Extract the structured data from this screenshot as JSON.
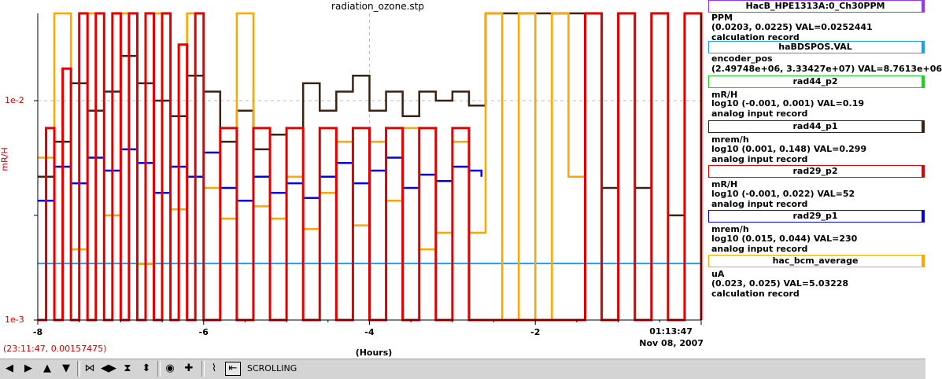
{
  "window": {
    "title": "radiation_ozone.stp"
  },
  "cursor_readout": "(23:11:47, 0.00157475)",
  "x_axis": {
    "label": "(Hours)",
    "end_time": "01:13:47",
    "end_date": "Nov 08, 2007"
  },
  "toolbar": {
    "status_label": "SCROLLING"
  },
  "legend": {
    "items": [
      {
        "name": "HacB_HPE1313A:0_Ch30PPM",
        "color": "#9b30ff",
        "lines": [
          "PPM",
          "(0.0203, 0.0225) VAL=0.0252441",
          "calculation record"
        ]
      },
      {
        "name": "haBDSPOS.VAL",
        "color": "#1ea0e8",
        "lines": [
          "encoder_pos",
          "(2.49748e+06, 3.33427e+07) VAL=8.7613e+06"
        ]
      },
      {
        "name": "rad44_p2",
        "color": "#20d020",
        "lines": [
          "mR/H",
          "log10 (-0.001, 0.001) VAL=0.19",
          "analog input record"
        ]
      },
      {
        "name": "rad44_p1",
        "color": "#3a2214",
        "lines": [
          "mrem/h",
          "log10 (0.001, 0.148) VAL=0.299",
          "analog input record"
        ]
      },
      {
        "name": "rad29_p2",
        "color": "#e00000",
        "lines": [
          "mR/H",
          "log10 (-0.001, 0.022) VAL=52",
          "analog input record"
        ]
      },
      {
        "name": "rad29_p1",
        "color": "#0000e0",
        "lines": [
          "mrem/h",
          "log10 (0.015, 0.044) VAL=230",
          "analog input record"
        ]
      },
      {
        "name": "hac_bcm_average",
        "color": "#ffa500",
        "lines": [
          "uA",
          "(0.023, 0.025) VAL=5.03228",
          "calculation record"
        ]
      }
    ]
  },
  "chart_data": {
    "type": "line",
    "title": "radiation_ozone.stp",
    "xlabel": "(Hours)",
    "ylabel": "mR/H",
    "yscale": "log",
    "xlim": [
      -8,
      0
    ],
    "ylim": [
      0.001,
      0.025
    ],
    "x_ticks": [
      -8,
      -6,
      -4,
      -2
    ],
    "x_tick_labels": [
      "-8",
      "-6",
      "-4",
      "-2"
    ],
    "y_ticks": [
      0.001,
      0.01
    ],
    "y_tick_labels": [
      "1e-3",
      "1e-2"
    ],
    "grid": true,
    "series": [
      {
        "name": "haBDSPOS.VAL",
        "color": "#1ea0e8",
        "x": [
          -8,
          0
        ],
        "y": [
          0.00181,
          0.00181
        ]
      },
      {
        "name": "rad44_p1",
        "color": "#3a2214",
        "x": [
          -8,
          -7.8,
          -7.6,
          -7.4,
          -7.2,
          -7.0,
          -6.8,
          -6.6,
          -6.4,
          -6.2,
          -6.0,
          -5.8,
          -5.6,
          -5.4,
          -5.2,
          -5.0,
          -4.8,
          -4.6,
          -4.4,
          -4.2,
          -4.0,
          -3.8,
          -3.6,
          -3.4,
          -3.2,
          -3.0,
          -2.8,
          -2.6,
          -2.4,
          -2.2,
          -2.0,
          -1.8,
          -1.6,
          -1.4,
          -1.2,
          -1.0,
          -0.8,
          -0.6,
          -0.4,
          -0.2,
          0
        ],
        "y": [
          0.0045,
          0.0065,
          0.012,
          0.009,
          0.011,
          0.016,
          0.012,
          0.01,
          0.0085,
          0.013,
          0.011,
          0.0065,
          0.009,
          0.006,
          0.007,
          0.0075,
          0.012,
          0.009,
          0.011,
          0.013,
          0.009,
          0.011,
          0.0085,
          0.011,
          0.01,
          0.011,
          0.0095,
          0.025,
          0.025,
          0.025,
          0.025,
          0.025,
          0.025,
          0.025,
          0.004,
          0.025,
          0.004,
          0.025,
          0.003,
          0.025,
          0.01
        ]
      },
      {
        "name": "rad29_p1",
        "color": "#0000e0",
        "x": [
          -8,
          -7.8,
          -7.6,
          -7.4,
          -7.2,
          -7.0,
          -6.8,
          -6.6,
          -6.4,
          -6.2,
          -6.0,
          -5.8,
          -5.6,
          -5.4,
          -5.2,
          -5.0,
          -4.8,
          -4.6,
          -4.4,
          -4.2,
          -4.0,
          -3.8,
          -3.6,
          -3.4,
          -3.2,
          -3.0,
          -2.8,
          -2.65
        ],
        "y": [
          0.0035,
          0.005,
          0.0042,
          0.0055,
          0.0048,
          0.006,
          0.0052,
          0.0038,
          0.005,
          0.0045,
          0.0058,
          0.004,
          0.0035,
          0.0045,
          0.0038,
          0.0042,
          0.0036,
          0.0045,
          0.0052,
          0.0042,
          0.0048,
          0.0055,
          0.004,
          0.0046,
          0.0043,
          0.005,
          0.0048,
          0.0045
        ]
      },
      {
        "name": "hac_bcm_average",
        "color": "#ffa500",
        "x": [
          -8,
          -7.8,
          -7.6,
          -7.4,
          -7.2,
          -7.0,
          -6.8,
          -6.6,
          -6.4,
          -6.2,
          -6.0,
          -5.8,
          -5.6,
          -5.4,
          -5.2,
          -5.0,
          -4.8,
          -4.6,
          -4.4,
          -4.2,
          -4.0,
          -3.8,
          -3.6,
          -3.4,
          -3.2,
          -3.0,
          -2.8,
          -2.6,
          -2.4,
          -2.2,
          -2.0,
          -1.8,
          -1.6,
          -1.4,
          -1.2,
          -1.0,
          -0.8,
          -0.6,
          -0.4,
          -0.2,
          0
        ],
        "y": [
          0.0055,
          0.025,
          0.0021,
          0.025,
          0.003,
          0.025,
          0.0018,
          0.025,
          0.0032,
          0.025,
          0.004,
          0.0029,
          0.025,
          0.0033,
          0.0029,
          0.0045,
          0.0026,
          0.0038,
          0.0065,
          0.0027,
          0.0065,
          0.0035,
          0.0075,
          0.0021,
          0.0025,
          0.0065,
          0.0025,
          0.025,
          0.001,
          0.025,
          0.001,
          0.025,
          0.0045,
          0.025,
          0.001,
          0.025,
          0.001,
          0.025,
          0.001,
          0.025,
          0.001
        ]
      },
      {
        "name": "rad29_p2",
        "color": "#e00000",
        "x": [
          -8,
          -7.9,
          -7.8,
          -7.7,
          -7.6,
          -7.5,
          -7.4,
          -7.3,
          -7.2,
          -7.1,
          -7.0,
          -6.9,
          -6.8,
          -6.7,
          -6.6,
          -6.5,
          -6.4,
          -6.3,
          -6.2,
          -6.1,
          -6.0,
          -5.8,
          -5.6,
          -5.4,
          -5.2,
          -5.0,
          -4.8,
          -4.6,
          -4.4,
          -4.2,
          -4.0,
          -3.8,
          -3.6,
          -3.4,
          -3.2,
          -3.0,
          -2.8,
          -2.6,
          -2.4,
          -2.2,
          -2.0,
          -1.8,
          -1.6,
          -1.4,
          -1.2,
          -1.0,
          -0.8,
          -0.6,
          -0.4,
          -0.2,
          0
        ],
        "y": [
          0.001,
          0.0075,
          0.001,
          0.014,
          0.001,
          0.025,
          0.001,
          0.025,
          0.001,
          0.025,
          0.001,
          0.025,
          0.001,
          0.025,
          0.001,
          0.025,
          0.001,
          0.018,
          0.001,
          0.025,
          0.001,
          0.0075,
          0.001,
          0.0075,
          0.001,
          0.0075,
          0.001,
          0.0075,
          0.001,
          0.0075,
          0.001,
          0.0075,
          0.001,
          0.0075,
          0.001,
          0.0075,
          0.001,
          0.001,
          0.001,
          0.001,
          0.001,
          0.001,
          0.001,
          0.025,
          0.001,
          0.025,
          0.001,
          0.025,
          0.001,
          0.025,
          0.001
        ]
      }
    ]
  }
}
